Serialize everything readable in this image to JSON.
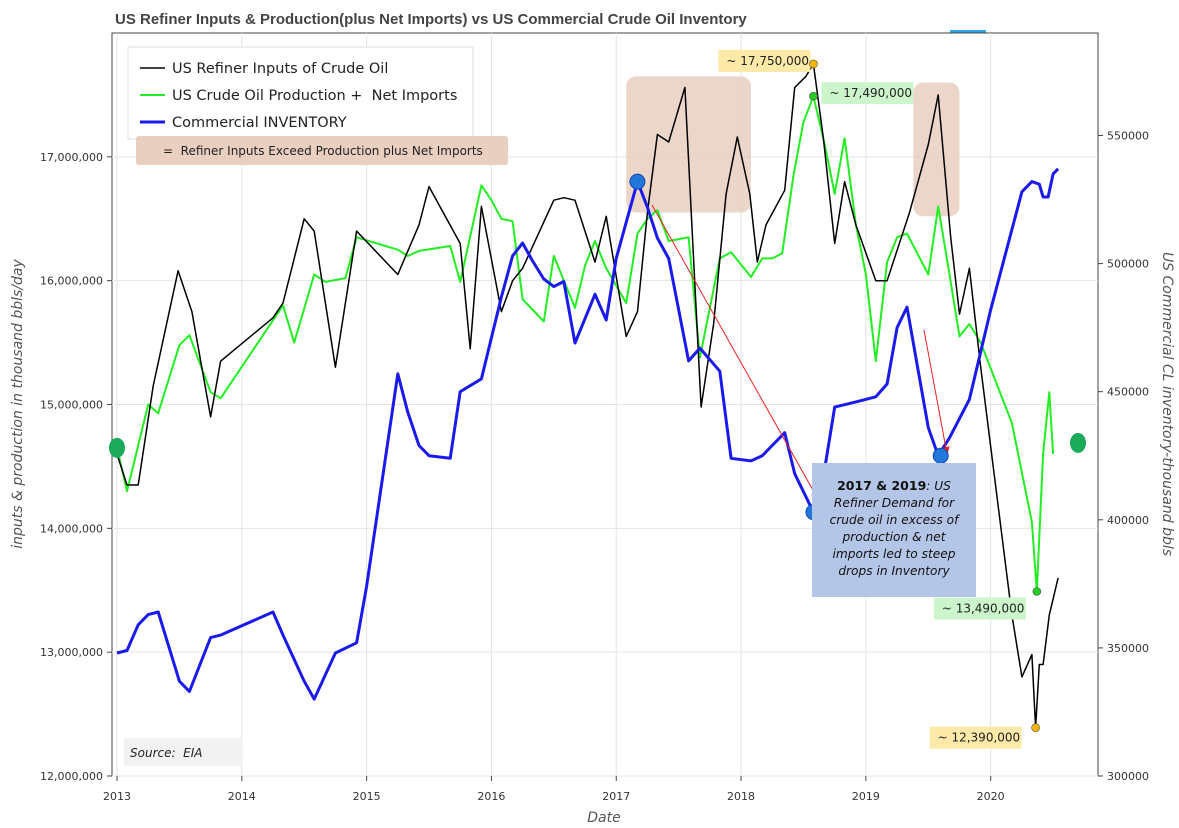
{
  "chart_data": {
    "type": "line",
    "title": "US Refiner Inputs & Production(plus Net Imports) vs US Commercial Crude Oil Inventory",
    "xlabel": "Date",
    "ylabel": "inputs & production in thousand bbls/day",
    "y2label": "US Commercial CL inventory-thousand bbls",
    "xlim": [
      2012.96,
      2020.86
    ],
    "ylim": [
      12000000,
      18000000
    ],
    "y2lim": [
      300000,
      590000
    ],
    "x_ticks": [
      "2013",
      "2014",
      "2015",
      "2016",
      "2017",
      "2018",
      "2019",
      "2020"
    ],
    "y_ticks": [
      "12,000,000",
      "13,000,000",
      "14,000,000",
      "15,000,000",
      "16,000,000",
      "17,000,000"
    ],
    "y2_ticks": [
      "300000",
      "350000",
      "400000",
      "450000",
      "500000",
      "550000"
    ],
    "grid": true,
    "legend_position": "top-left",
    "series": [
      {
        "name": "US Refiner Inputs of Crude Oil",
        "axis": "left",
        "color": "#000000",
        "points": [
          [
            2013.0,
            14600000
          ],
          [
            2013.08,
            14350000
          ],
          [
            2013.17,
            14350000
          ],
          [
            2013.29,
            15150000
          ],
          [
            2013.49,
            16080000
          ],
          [
            2013.6,
            15750000
          ],
          [
            2013.75,
            14900000
          ],
          [
            2013.83,
            15350000
          ],
          [
            2014.25,
            15700000
          ],
          [
            2014.33,
            15820000
          ],
          [
            2014.5,
            16500000
          ],
          [
            2014.58,
            16400000
          ],
          [
            2014.75,
            15300000
          ],
          [
            2014.92,
            16400000
          ],
          [
            2015.25,
            16050000
          ],
          [
            2015.42,
            16450000
          ],
          [
            2015.5,
            16760000
          ],
          [
            2015.75,
            16300000
          ],
          [
            2015.83,
            15450000
          ],
          [
            2015.92,
            16600000
          ],
          [
            2016.08,
            15750000
          ],
          [
            2016.17,
            16000000
          ],
          [
            2016.25,
            16100000
          ],
          [
            2016.5,
            16650000
          ],
          [
            2016.58,
            16670000
          ],
          [
            2016.67,
            16650000
          ],
          [
            2016.83,
            16150000
          ],
          [
            2016.92,
            16520000
          ],
          [
            2017.08,
            15550000
          ],
          [
            2017.17,
            15750000
          ],
          [
            2017.25,
            16550000
          ],
          [
            2017.33,
            17180000
          ],
          [
            2017.42,
            17120000
          ],
          [
            2017.55,
            17560000
          ],
          [
            2017.68,
            14980000
          ],
          [
            2017.78,
            15650000
          ],
          [
            2017.88,
            16700000
          ],
          [
            2017.97,
            17160000
          ],
          [
            2018.07,
            16700000
          ],
          [
            2018.13,
            16150000
          ],
          [
            2018.2,
            16450000
          ],
          [
            2018.35,
            16730000
          ],
          [
            2018.43,
            17560000
          ],
          [
            2018.52,
            17650000
          ],
          [
            2018.58,
            17750000
          ],
          [
            2018.66,
            17150000
          ],
          [
            2018.75,
            16300000
          ],
          [
            2018.83,
            16800000
          ],
          [
            2018.92,
            16450000
          ],
          [
            2019.08,
            16000000
          ],
          [
            2019.17,
            16000000
          ],
          [
            2019.35,
            16550000
          ],
          [
            2019.5,
            17100000
          ],
          [
            2019.58,
            17500000
          ],
          [
            2019.68,
            16350000
          ],
          [
            2019.75,
            15730000
          ],
          [
            2019.83,
            16100000
          ],
          [
            2019.92,
            15300000
          ],
          [
            2020.17,
            13300000
          ],
          [
            2020.25,
            12800000
          ],
          [
            2020.33,
            12980000
          ],
          [
            2020.36,
            12390000
          ],
          [
            2020.39,
            12900000
          ],
          [
            2020.42,
            12900000
          ],
          [
            2020.47,
            13300000
          ],
          [
            2020.54,
            13600000
          ]
        ]
      },
      {
        "name": "US Crude Oil Production +  Net Imports",
        "axis": "left",
        "color": "#22ee22",
        "points": [
          [
            2013.0,
            14650000
          ],
          [
            2013.08,
            14300000
          ],
          [
            2013.25,
            15000000
          ],
          [
            2013.33,
            14930000
          ],
          [
            2013.5,
            15480000
          ],
          [
            2013.58,
            15560000
          ],
          [
            2013.75,
            15100000
          ],
          [
            2013.83,
            15050000
          ],
          [
            2014.33,
            15800000
          ],
          [
            2014.42,
            15500000
          ],
          [
            2014.58,
            16050000
          ],
          [
            2014.67,
            15990000
          ],
          [
            2014.83,
            16020000
          ],
          [
            2014.92,
            16350000
          ],
          [
            2015.25,
            16250000
          ],
          [
            2015.33,
            16200000
          ],
          [
            2015.42,
            16240000
          ],
          [
            2015.67,
            16280000
          ],
          [
            2015.75,
            15990000
          ],
          [
            2015.92,
            16770000
          ],
          [
            2016.0,
            16650000
          ],
          [
            2016.08,
            16500000
          ],
          [
            2016.17,
            16480000
          ],
          [
            2016.25,
            15850000
          ],
          [
            2016.42,
            15670000
          ],
          [
            2016.5,
            16200000
          ],
          [
            2016.67,
            15780000
          ],
          [
            2016.75,
            16120000
          ],
          [
            2016.83,
            16320000
          ],
          [
            2016.92,
            16100000
          ],
          [
            2017.08,
            15820000
          ],
          [
            2017.17,
            16380000
          ],
          [
            2017.25,
            16500000
          ],
          [
            2017.33,
            16570000
          ],
          [
            2017.42,
            16320000
          ],
          [
            2017.58,
            16350000
          ],
          [
            2017.67,
            15380000
          ],
          [
            2017.83,
            16180000
          ],
          [
            2017.92,
            16230000
          ],
          [
            2018.08,
            16030000
          ],
          [
            2018.17,
            16180000
          ],
          [
            2018.25,
            16180000
          ],
          [
            2018.33,
            16220000
          ],
          [
            2018.42,
            16850000
          ],
          [
            2018.5,
            17280000
          ],
          [
            2018.58,
            17490000
          ],
          [
            2018.67,
            17100000
          ],
          [
            2018.75,
            16700000
          ],
          [
            2018.83,
            17150000
          ],
          [
            2018.92,
            16450000
          ],
          [
            2019.0,
            16050000
          ],
          [
            2019.08,
            15350000
          ],
          [
            2019.17,
            16150000
          ],
          [
            2019.25,
            16350000
          ],
          [
            2019.33,
            16380000
          ],
          [
            2019.5,
            16050000
          ],
          [
            2019.58,
            16600000
          ],
          [
            2019.67,
            16050000
          ],
          [
            2019.75,
            15550000
          ],
          [
            2019.83,
            15650000
          ],
          [
            2019.92,
            15500000
          ],
          [
            2020.17,
            14850000
          ],
          [
            2020.33,
            14050000
          ],
          [
            2020.37,
            13490000
          ],
          [
            2020.42,
            14600000
          ],
          [
            2020.47,
            15100000
          ],
          [
            2020.5,
            14600000
          ]
        ]
      },
      {
        "name": "Commercial INVENTORY",
        "axis": "right",
        "color": "#1a1aee",
        "points": [
          [
            2013.0,
            348000
          ],
          [
            2013.08,
            349000
          ],
          [
            2013.17,
            359000
          ],
          [
            2013.25,
            363000
          ],
          [
            2013.33,
            364000
          ],
          [
            2013.5,
            337000
          ],
          [
            2013.58,
            333000
          ],
          [
            2013.75,
            354000
          ],
          [
            2013.83,
            355000
          ],
          [
            2014.25,
            364000
          ],
          [
            2014.33,
            355000
          ],
          [
            2014.5,
            337000
          ],
          [
            2014.58,
            330000
          ],
          [
            2014.75,
            348000
          ],
          [
            2014.92,
            352000
          ],
          [
            2015.0,
            374000
          ],
          [
            2015.25,
            457000
          ],
          [
            2015.33,
            442000
          ],
          [
            2015.42,
            429000
          ],
          [
            2015.5,
            425000
          ],
          [
            2015.67,
            424000
          ],
          [
            2015.75,
            450000
          ],
          [
            2015.92,
            455000
          ],
          [
            2016.08,
            487000
          ],
          [
            2016.17,
            503000
          ],
          [
            2016.25,
            508000
          ],
          [
            2016.33,
            501000
          ],
          [
            2016.42,
            494000
          ],
          [
            2016.5,
            491000
          ],
          [
            2016.58,
            493000
          ],
          [
            2016.67,
            469000
          ],
          [
            2016.83,
            488000
          ],
          [
            2016.92,
            478000
          ],
          [
            2017.0,
            502000
          ],
          [
            2017.17,
            532000
          ],
          [
            2017.25,
            522000
          ],
          [
            2017.33,
            510000
          ],
          [
            2017.42,
            502000
          ],
          [
            2017.58,
            462000
          ],
          [
            2017.67,
            467000
          ],
          [
            2017.83,
            458000
          ],
          [
            2017.92,
            424000
          ],
          [
            2018.08,
            423000
          ],
          [
            2018.17,
            425000
          ],
          [
            2018.25,
            429000
          ],
          [
            2018.35,
            434000
          ],
          [
            2018.43,
            418000
          ],
          [
            2018.58,
            403000
          ],
          [
            2018.67,
            420000
          ],
          [
            2018.75,
            444000
          ],
          [
            2018.92,
            446000
          ],
          [
            2019.08,
            448000
          ],
          [
            2019.17,
            453000
          ],
          [
            2019.25,
            475000
          ],
          [
            2019.33,
            483000
          ],
          [
            2019.42,
            458000
          ],
          [
            2019.5,
            436000
          ],
          [
            2019.58,
            425000
          ],
          [
            2019.67,
            432000
          ],
          [
            2019.83,
            447000
          ],
          [
            2020.0,
            482000
          ],
          [
            2020.25,
            528000
          ],
          [
            2020.33,
            532000
          ],
          [
            2020.39,
            531000
          ],
          [
            2020.42,
            526000
          ],
          [
            2020.46,
            526000
          ],
          [
            2020.5,
            535000
          ],
          [
            2020.54,
            537000
          ]
        ]
      }
    ],
    "legend_shade_label": "=  Refiner Inputs Exceed Production plus Net Imports",
    "shaded_regions": [
      {
        "x": [
          2017.08,
          2018.08
        ],
        "y": [
          16550000,
          17650000
        ]
      },
      {
        "x": [
          2019.38,
          2019.75
        ],
        "y": [
          16520000,
          17600000
        ]
      }
    ],
    "shade_color": "#e9cfbf",
    "annotations": [
      {
        "label": "~ 17,750,000",
        "x": 2018.58,
        "y": 17750000,
        "bg": "#fde9a8",
        "marker": "#f4b400"
      },
      {
        "label": "~ 17,490,000",
        "x": 2018.58,
        "y": 17490000,
        "bg": "#ccf5cc",
        "marker": "#22cc22"
      },
      {
        "label": "~ 13,490,000",
        "x": 2020.37,
        "y": 13490000,
        "bg": "#ccf5cc",
        "marker": "#22cc22"
      },
      {
        "label": "~ 12,390,000",
        "x": 2020.36,
        "y": 12390000,
        "bg": "#fde9a8",
        "marker": "#f4b400"
      }
    ],
    "blue_points": [
      [
        2017.17,
        532000
      ],
      [
        2018.58,
        403000
      ],
      [
        2019.6,
        425000
      ]
    ],
    "green_end_markers": [
      [
        2013.0,
        14650000
      ],
      [
        2020.7,
        14690000
      ]
    ],
    "callout": {
      "bold": "2017 & 2019",
      "text": ": US Refiner Demand for crude oil in excess of production & net imports led to steep drops in Inventory"
    },
    "source": "Source:  EIA"
  }
}
